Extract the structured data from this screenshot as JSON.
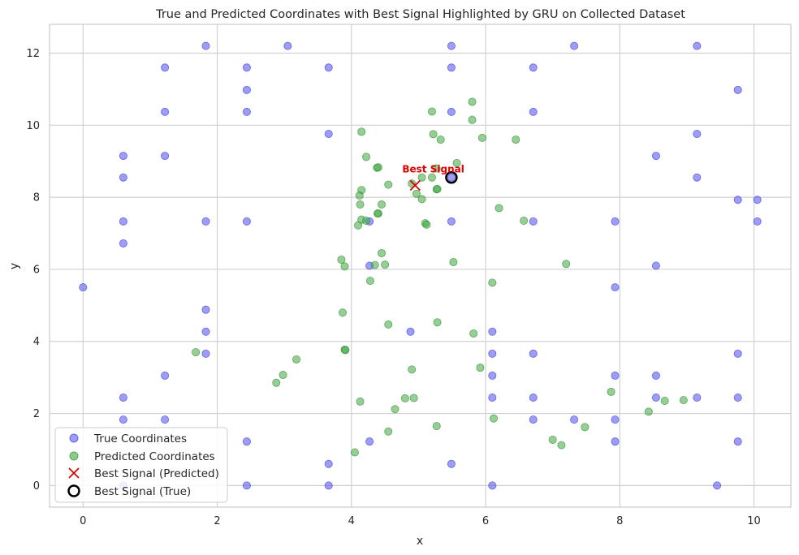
{
  "chart_data": {
    "type": "scatter",
    "title": "True and Predicted Coordinates with Best Signal Highlighted by GRU on Collected Dataset",
    "xlabel": "x",
    "ylabel": "y",
    "xlim": [
      -0.5,
      10.55
    ],
    "ylim": [
      -0.6,
      12.8
    ],
    "x_ticks": [
      0,
      2,
      4,
      6,
      8,
      10
    ],
    "y_ticks": [
      0,
      2,
      4,
      6,
      8,
      10,
      12
    ],
    "grid": true,
    "legend_position": "lower-left",
    "series": [
      {
        "name": "True Coordinates",
        "color": "#5b5bf0",
        "marker": "circle",
        "points": [
          [
            0,
            5.5
          ],
          [
            0.6,
            9.15
          ],
          [
            0.6,
            8.55
          ],
          [
            0.6,
            7.33
          ],
          [
            0.6,
            6.72
          ],
          [
            0.6,
            2.44
          ],
          [
            0.6,
            1.83
          ],
          [
            0.6,
            0
          ],
          [
            1.22,
            11.6
          ],
          [
            1.22,
            10.37
          ],
          [
            1.22,
            9.15
          ],
          [
            1.22,
            3.05
          ],
          [
            1.22,
            1.83
          ],
          [
            1.83,
            12.2
          ],
          [
            1.83,
            7.33
          ],
          [
            1.83,
            4.88
          ],
          [
            1.83,
            4.27
          ],
          [
            1.83,
            3.66
          ],
          [
            2.44,
            11.6
          ],
          [
            2.44,
            10.98
          ],
          [
            2.44,
            10.37
          ],
          [
            2.44,
            7.33
          ],
          [
            2.44,
            1.22
          ],
          [
            2.44,
            0
          ],
          [
            3.05,
            12.2
          ],
          [
            3.66,
            11.6
          ],
          [
            3.66,
            9.76
          ],
          [
            3.66,
            0.6
          ],
          [
            3.66,
            0
          ],
          [
            4.27,
            7.33
          ],
          [
            4.27,
            6.1
          ],
          [
            4.27,
            1.22
          ],
          [
            4.88,
            4.27
          ],
          [
            5.49,
            12.2
          ],
          [
            5.49,
            11.6
          ],
          [
            5.49,
            10.37
          ],
          [
            5.49,
            8.55
          ],
          [
            5.49,
            7.33
          ],
          [
            5.49,
            0.6
          ],
          [
            6.1,
            4.27
          ],
          [
            6.1,
            3.66
          ],
          [
            6.1,
            3.05
          ],
          [
            6.1,
            2.44
          ],
          [
            6.1,
            0
          ],
          [
            6.71,
            11.6
          ],
          [
            6.71,
            10.37
          ],
          [
            6.71,
            7.33
          ],
          [
            6.71,
            3.66
          ],
          [
            6.71,
            2.44
          ],
          [
            6.71,
            1.83
          ],
          [
            7.32,
            12.2
          ],
          [
            7.32,
            1.83
          ],
          [
            7.93,
            7.33
          ],
          [
            7.93,
            5.5
          ],
          [
            7.93,
            3.05
          ],
          [
            7.93,
            1.83
          ],
          [
            7.93,
            1.22
          ],
          [
            8.54,
            9.15
          ],
          [
            8.54,
            6.1
          ],
          [
            8.54,
            3.05
          ],
          [
            8.54,
            2.44
          ],
          [
            9.15,
            12.2
          ],
          [
            9.15,
            9.76
          ],
          [
            9.15,
            8.55
          ],
          [
            9.15,
            2.44
          ],
          [
            9.45,
            0
          ],
          [
            9.76,
            10.98
          ],
          [
            9.76,
            7.93
          ],
          [
            9.76,
            3.66
          ],
          [
            9.76,
            2.44
          ],
          [
            9.76,
            1.22
          ],
          [
            10.05,
            7.93
          ],
          [
            10.05,
            7.33
          ]
        ]
      },
      {
        "name": "Predicted Coordinates",
        "color": "#3fa83f",
        "marker": "circle",
        "points": [
          [
            5.8,
            10.65
          ],
          [
            5.2,
            10.38
          ],
          [
            5.8,
            10.15
          ],
          [
            4.15,
            9.82
          ],
          [
            5.22,
            9.75
          ],
          [
            5.33,
            9.6
          ],
          [
            5.95,
            9.65
          ],
          [
            6.45,
            9.6
          ],
          [
            4.22,
            9.12
          ],
          [
            4.38,
            8.82
          ],
          [
            4.4,
            8.83
          ],
          [
            5.57,
            8.95
          ],
          [
            4.55,
            8.35
          ],
          [
            4.9,
            8.38
          ],
          [
            5.05,
            8.55
          ],
          [
            5.2,
            8.55
          ],
          [
            5.27,
            8.8
          ],
          [
            5.27,
            8.22
          ],
          [
            5.28,
            8.23
          ],
          [
            4.15,
            8.2
          ],
          [
            4.12,
            8.05
          ],
          [
            4.97,
            8.1
          ],
          [
            5.05,
            7.95
          ],
          [
            4.45,
            7.8
          ],
          [
            4.13,
            7.8
          ],
          [
            6.2,
            7.7
          ],
          [
            4.4,
            7.55
          ],
          [
            4.39,
            7.55
          ],
          [
            4.15,
            7.38
          ],
          [
            4.22,
            7.35
          ],
          [
            4.1,
            7.22
          ],
          [
            5.1,
            7.28
          ],
          [
            5.12,
            7.24
          ],
          [
            6.57,
            7.35
          ],
          [
            4.45,
            6.45
          ],
          [
            3.85,
            6.27
          ],
          [
            3.9,
            6.08
          ],
          [
            4.35,
            6.12
          ],
          [
            4.5,
            6.13
          ],
          [
            5.52,
            6.2
          ],
          [
            7.2,
            6.15
          ],
          [
            4.28,
            5.68
          ],
          [
            6.1,
            5.63
          ],
          [
            3.87,
            4.8
          ],
          [
            4.55,
            4.47
          ],
          [
            5.28,
            4.53
          ],
          [
            5.82,
            4.22
          ],
          [
            1.68,
            3.7
          ],
          [
            3.9,
            3.77
          ],
          [
            3.91,
            3.76
          ],
          [
            3.18,
            3.5
          ],
          [
            5.92,
            3.27
          ],
          [
            4.9,
            3.22
          ],
          [
            2.98,
            3.07
          ],
          [
            2.88,
            2.85
          ],
          [
            7.87,
            2.6
          ],
          [
            4.8,
            2.42
          ],
          [
            4.93,
            2.43
          ],
          [
            4.13,
            2.33
          ],
          [
            8.67,
            2.35
          ],
          [
            8.95,
            2.37
          ],
          [
            4.65,
            2.12
          ],
          [
            8.43,
            2.05
          ],
          [
            6.12,
            1.86
          ],
          [
            5.27,
            1.65
          ],
          [
            7.48,
            1.62
          ],
          [
            4.55,
            1.5
          ],
          [
            7.0,
            1.27
          ],
          [
            7.13,
            1.12
          ],
          [
            4.05,
            0.92
          ]
        ]
      }
    ],
    "best_signal": {
      "predicted": {
        "label": "Best Signal (Predicted)",
        "x": 4.95,
        "y": 8.33,
        "marker": "x",
        "color": "#dd0000"
      },
      "true": {
        "label": "Best Signal (True)",
        "x": 5.49,
        "y": 8.55,
        "marker": "hollow-circle",
        "color": "#000000"
      },
      "annotation": "Best Signal"
    }
  }
}
